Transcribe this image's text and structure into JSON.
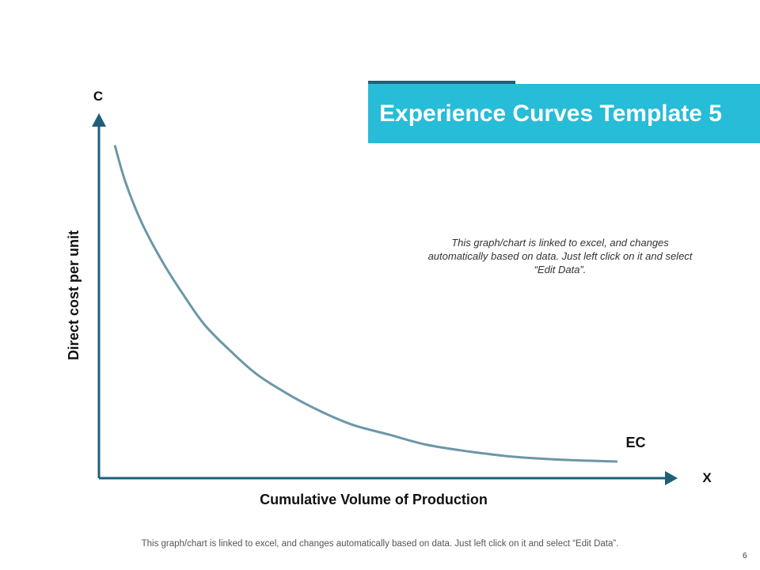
{
  "header": {
    "title": "Experience Curves Template 5"
  },
  "note": "This graph/chart is linked to excel, and changes automatically based on data. Just left click on it and select “Edit Data”.",
  "footer": {
    "note": "This graph/chart is linked to excel, and changes automatically based on data. Just left click on it and select “Edit Data”.",
    "page_number": "6"
  },
  "colors": {
    "title_band": "#27bcd7",
    "title_accent": "#1f5f7a",
    "axis": "#1f5f7a",
    "curve": "#6b97a8"
  },
  "chart_data": {
    "type": "line",
    "title": "",
    "xlabel": "Cumulative Volume of Production",
    "ylabel": "Direct cost per unit",
    "x_axis_end_label": "X",
    "y_axis_end_label": "C",
    "grid": false,
    "series": [
      {
        "name": "EC",
        "x": [
          0.03,
          0.05,
          0.08,
          0.12,
          0.16,
          0.2,
          0.25,
          0.3,
          0.36,
          0.42,
          0.48,
          0.55,
          0.62,
          0.7,
          0.78,
          0.88,
          0.98
        ],
        "y": [
          1.0,
          0.89,
          0.77,
          0.65,
          0.55,
          0.46,
          0.38,
          0.31,
          0.25,
          0.2,
          0.16,
          0.13,
          0.1,
          0.08,
          0.065,
          0.055,
          0.05
        ]
      }
    ],
    "xlim": [
      0,
      1.07
    ],
    "ylim": [
      0,
      1.07
    ]
  }
}
